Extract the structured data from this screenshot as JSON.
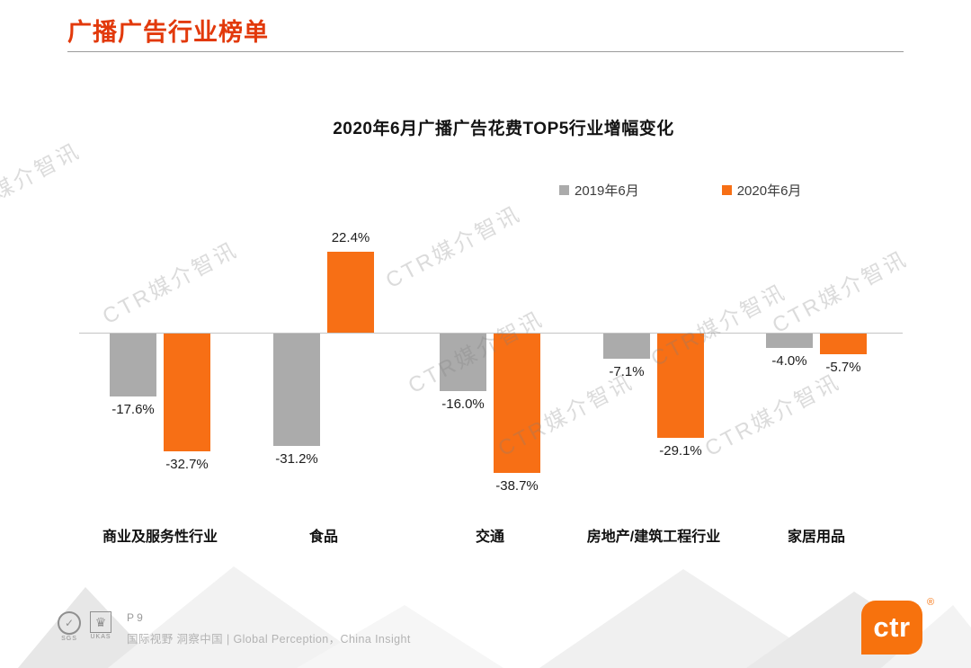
{
  "page": {
    "title": "广播广告行业榜单"
  },
  "colors": {
    "accent": "#E2390B",
    "bar_2019": "#ABABAB",
    "bar_2020": "#F76F15",
    "logo_orange": "#F7720D"
  },
  "chart_data": {
    "type": "bar",
    "title": "2020年6月广播广告花费TOP5行业增幅变化",
    "categories": [
      "商业及服务性行业",
      "食品",
      "交通",
      "房地产/建筑工程行业",
      "家居用品"
    ],
    "series": [
      {
        "name": "2019年6月",
        "color": "#ABABAB",
        "values": [
          -17.6,
          -31.2,
          -16.0,
          -7.1,
          -4.0
        ],
        "labels": [
          "-17.6%",
          "-31.2%",
          "-16.0%",
          "-7.1%",
          "-4.0%"
        ]
      },
      {
        "name": "2020年6月",
        "color": "#F76F15",
        "values": [
          -32.7,
          22.4,
          -38.7,
          -29.1,
          -5.7
        ],
        "labels": [
          "-32.7%",
          "22.4%",
          "-38.7%",
          "-29.1%",
          "-5.7%"
        ]
      }
    ],
    "xlabel": "",
    "ylabel": "",
    "ylim": [
      -45,
      30
    ],
    "grid": false,
    "legend_position": "top-right",
    "baseline": 0
  },
  "watermark": {
    "text": "CTR媒介智讯"
  },
  "footer": {
    "page_number": "P 9",
    "tagline": "国际视野  洞察中国 |  Global Perception，China Insight",
    "cert1": "SGS",
    "cert2": "UKAS",
    "cert1_glyph": "✓",
    "cert2_glyph": "♛",
    "logo_text": "ctr",
    "registered": "®"
  }
}
